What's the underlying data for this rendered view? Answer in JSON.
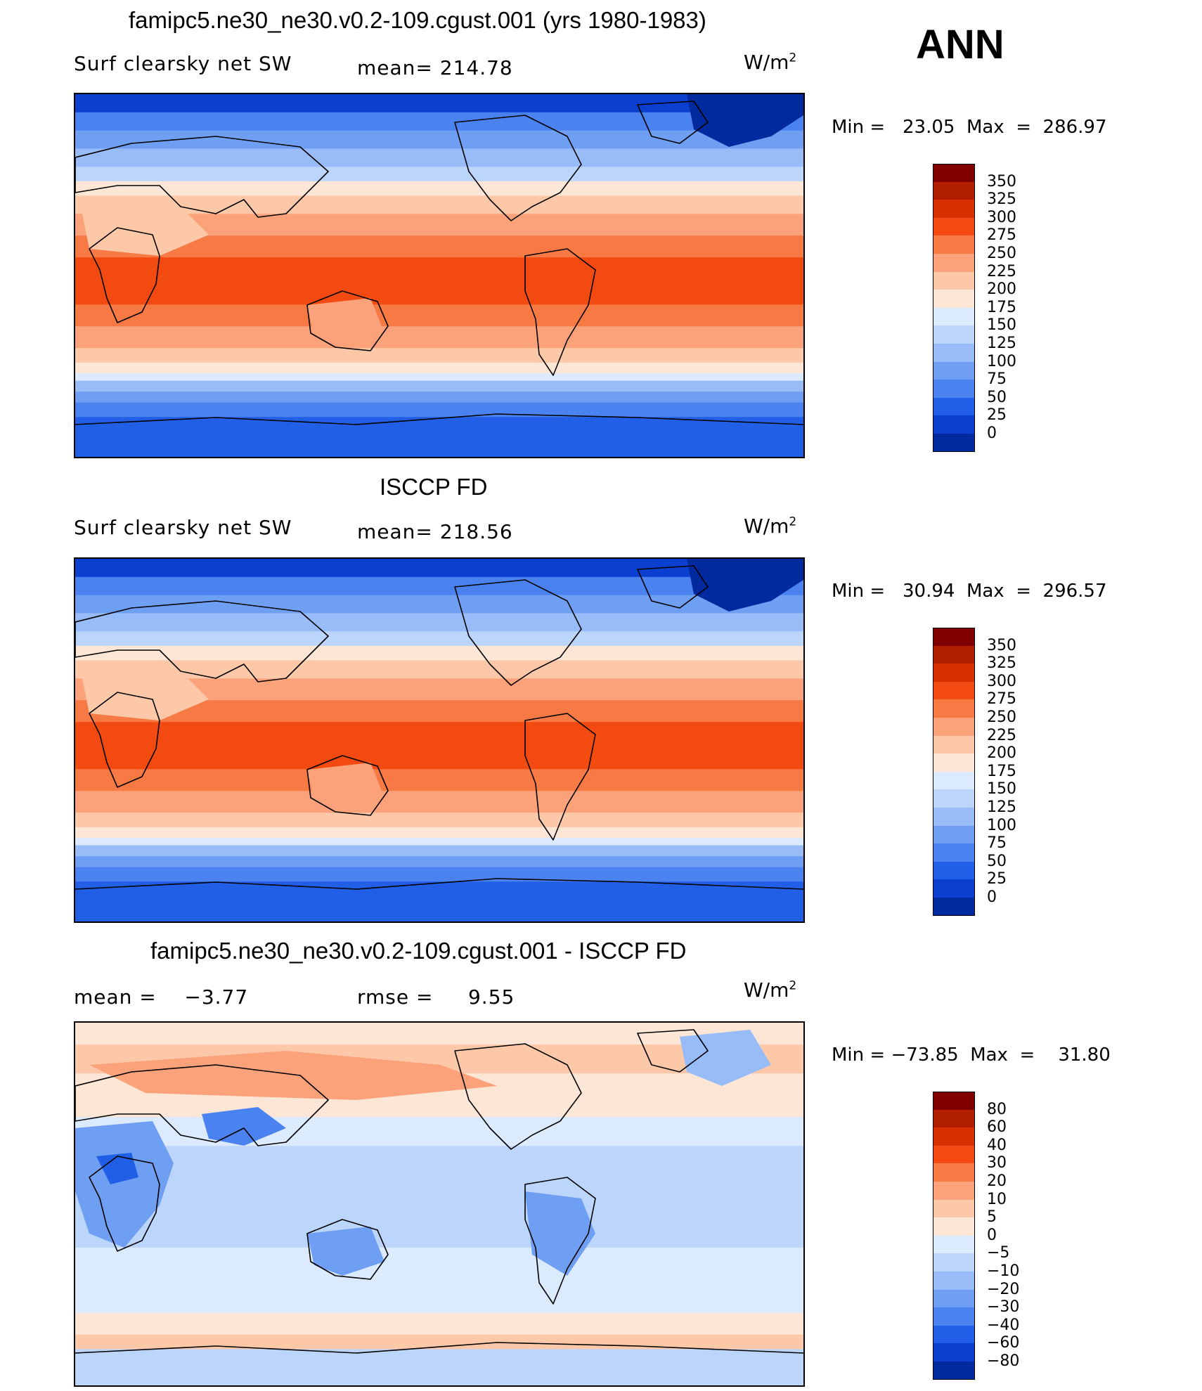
{
  "season": "ANN",
  "panels": [
    {
      "title": "famipc5.ne30_ne30.v0.2-109.cgust.001 (yrs 1980-1983)",
      "left_label": "Surf clearsky net SW",
      "center_label": "mean= 214.78",
      "units": "W/m",
      "units_sup": "2",
      "minmax": "Min =   23.05  Max  =  286.97",
      "colorbar": {
        "labels": [
          "350",
          "325",
          "300",
          "275",
          "250",
          "225",
          "200",
          "175",
          "150",
          "125",
          "100",
          "75",
          "50",
          "25",
          "0"
        ],
        "colors": [
          "#800000",
          "#b21e00",
          "#d93000",
          "#f24a10",
          "#f77a45",
          "#fba27a",
          "#fcc8a8",
          "#fde6d6",
          "#dbeafc",
          "#bcd5fb",
          "#98bcf8",
          "#6f9ff3",
          "#4a82ef",
          "#2160e6",
          "#0a3fd0",
          "#002a9e"
        ]
      },
      "map_scheme": "abs",
      "map_data": {
        "field": "surface clearsky net shortwave",
        "min": 23.05,
        "max": 286.97,
        "mean": 214.78
      }
    },
    {
      "title": "ISCCP FD",
      "left_label": "Surf clearsky net SW",
      "center_label": "mean= 218.56",
      "units": "W/m",
      "units_sup": "2",
      "minmax": "Min =   30.94  Max  =  296.57",
      "colorbar": {
        "labels": [
          "350",
          "325",
          "300",
          "275",
          "250",
          "225",
          "200",
          "175",
          "150",
          "125",
          "100",
          "75",
          "50",
          "25",
          "0"
        ],
        "colors": [
          "#800000",
          "#b21e00",
          "#d93000",
          "#f24a10",
          "#f77a45",
          "#fba27a",
          "#fcc8a8",
          "#fde6d6",
          "#dbeafc",
          "#bcd5fb",
          "#98bcf8",
          "#6f9ff3",
          "#4a82ef",
          "#2160e6",
          "#0a3fd0",
          "#002a9e"
        ]
      },
      "map_scheme": "abs",
      "map_data": {
        "field": "surface clearsky net shortwave",
        "min": 30.94,
        "max": 296.57,
        "mean": 218.56
      }
    },
    {
      "title": "famipc5.ne30_ne30.v0.2-109.cgust.001 - ISCCP FD",
      "left_label": "mean =    −3.77",
      "center_label": "rmse =     9.55",
      "units": "W/m",
      "units_sup": "2",
      "minmax": "Min = −73.85  Max  =    31.80",
      "colorbar": {
        "labels": [
          "80",
          "60",
          "40",
          "30",
          "20",
          "10",
          "5",
          "0",
          "−5",
          "−10",
          "−20",
          "−30",
          "−40",
          "−60",
          "−80"
        ],
        "colors": [
          "#800000",
          "#b21e00",
          "#d93000",
          "#f24a10",
          "#f77a45",
          "#fba27a",
          "#fcc8a8",
          "#fde6d6",
          "#dbeafc",
          "#bcd5fb",
          "#98bcf8",
          "#6f9ff3",
          "#4a82ef",
          "#2160e6",
          "#0a3fd0",
          "#002a9e"
        ]
      },
      "map_scheme": "diff",
      "map_data": {
        "field": "model minus observation difference",
        "min": -73.85,
        "max": 31.8,
        "mean": -3.77,
        "rmse": 9.55
      }
    }
  ]
}
